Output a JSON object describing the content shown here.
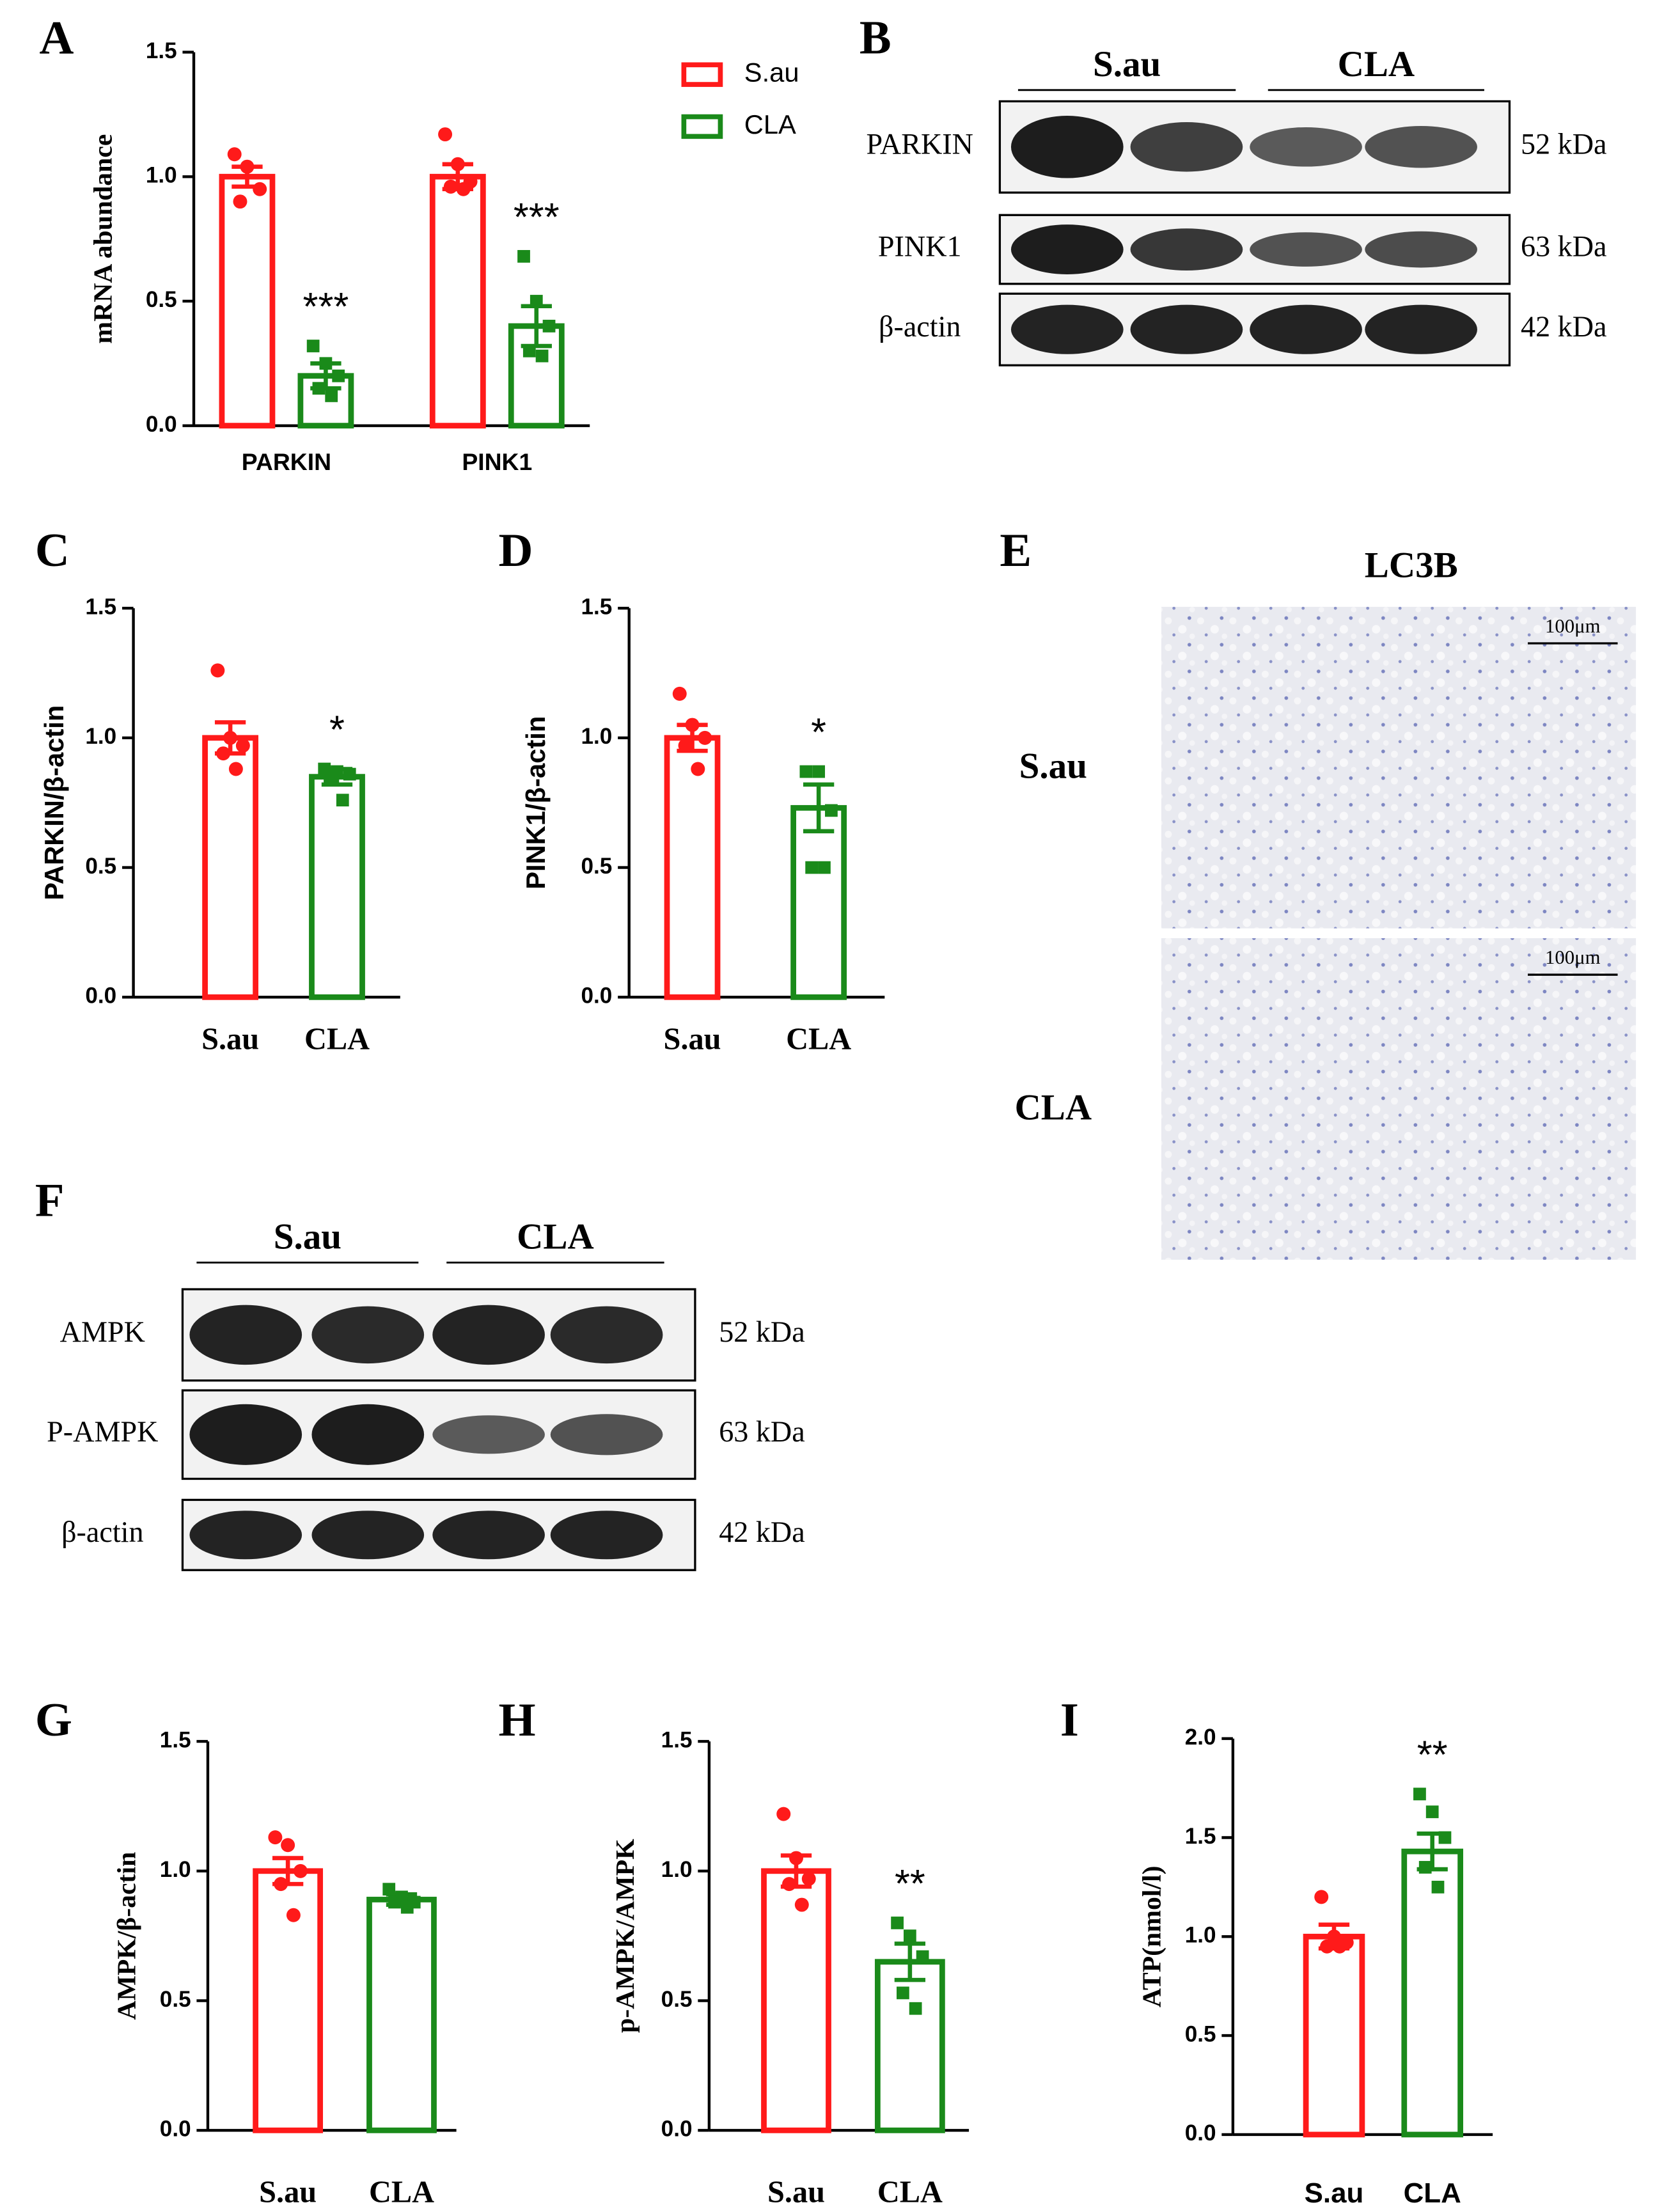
{
  "chart_data": [
    {
      "type": "bar",
      "panel": "A",
      "ylabel": "mRNA abundance",
      "categories": [
        "PARKIN",
        "PINK1"
      ],
      "series": [
        {
          "name": "S.au",
          "color": "#ff1a1a",
          "marker": "circle",
          "values": [
            1.0,
            1.0
          ],
          "errors": [
            0.04,
            0.05
          ],
          "points": [
            [
              1.09,
              1.04,
              0.95,
              0.9
            ],
            [
              1.17,
              1.05,
              0.98,
              0.96,
              0.95
            ]
          ],
          "annotations": [
            null,
            null
          ]
        },
        {
          "name": "CLA",
          "color": "#1a8a1a",
          "marker": "square",
          "values": [
            0.2,
            0.4
          ],
          "errors": [
            0.05,
            0.08
          ],
          "points": [
            [
              0.32,
              0.25,
              0.2,
              0.15,
              0.12
            ],
            [
              0.68,
              0.5,
              0.4,
              0.3,
              0.28
            ]
          ],
          "annotations": [
            "***",
            "***"
          ]
        }
      ],
      "ylim": [
        0,
        1.5
      ],
      "yticks": [
        {
          "value": 0,
          "label": "0.0"
        },
        0.5,
        {
          "value": 1,
          "label": "1.0"
        },
        1.5
      ],
      "legend": "top-right"
    },
    {
      "type": "bar",
      "panel": "C",
      "ylabel": "PARKIN/β-actin",
      "categories": [
        "S.au",
        "CLA"
      ],
      "colors": [
        "#ff1a1a",
        "#1a8a1a"
      ],
      "markers": [
        "circle",
        "square"
      ],
      "values": [
        1.0,
        0.85
      ],
      "errors": [
        0.06,
        0.03
      ],
      "points": [
        [
          1.26,
          1.0,
          0.97,
          0.94,
          0.88
        ],
        [
          0.88,
          0.87,
          0.86,
          0.85,
          0.76
        ]
      ],
      "annotations": [
        null,
        "*"
      ],
      "ylim": [
        0,
        1.5
      ],
      "yticks": [
        {
          "value": 0,
          "label": "0.0"
        },
        0.5,
        {
          "value": 1,
          "label": "1.0"
        },
        1.5
      ]
    },
    {
      "type": "bar",
      "panel": "D",
      "ylabel": "PINK1/β-actin",
      "categories": [
        "S.au",
        "CLA"
      ],
      "colors": [
        "#ff1a1a",
        "#1a8a1a"
      ],
      "markers": [
        "circle",
        "square"
      ],
      "values": [
        1.0,
        0.73
      ],
      "errors": [
        0.05,
        0.09
      ],
      "points": [
        [
          1.17,
          1.05,
          1.0,
          0.97,
          0.88
        ],
        [
          0.87,
          0.87,
          0.72,
          0.5,
          0.5
        ]
      ],
      "annotations": [
        null,
        "*"
      ],
      "ylim": [
        0,
        1.5
      ],
      "yticks": [
        {
          "value": 0,
          "label": "0.0"
        },
        0.5,
        {
          "value": 1,
          "label": "1.0"
        },
        1.5
      ]
    },
    {
      "type": "bar",
      "panel": "G",
      "ylabel": "AMPK/β-actin",
      "categories": [
        "S.au",
        "CLA"
      ],
      "colors": [
        "#ff1a1a",
        "#1a8a1a"
      ],
      "markers": [
        "circle",
        "square"
      ],
      "values": [
        1.0,
        0.89
      ],
      "errors": [
        0.05,
        0.02
      ],
      "points": [
        [
          1.13,
          1.1,
          1.0,
          0.95,
          0.83
        ],
        [
          0.93,
          0.9,
          0.88,
          0.88,
          0.86
        ]
      ],
      "annotations": [
        null,
        null
      ],
      "ylim": [
        0,
        1.5
      ],
      "yticks": [
        {
          "value": 0,
          "label": "0.0"
        },
        0.5,
        {
          "value": 1,
          "label": "1.0"
        },
        1.5
      ]
    },
    {
      "type": "bar",
      "panel": "H",
      "ylabel": "p-AMPK/AMPK",
      "categories": [
        "S.au",
        "CLA"
      ],
      "colors": [
        "#ff1a1a",
        "#1a8a1a"
      ],
      "markers": [
        "circle",
        "square"
      ],
      "values": [
        1.0,
        0.65
      ],
      "errors": [
        0.06,
        0.07
      ],
      "points": [
        [
          1.22,
          1.05,
          0.97,
          0.95,
          0.87
        ],
        [
          0.8,
          0.75,
          0.67,
          0.53,
          0.47
        ]
      ],
      "annotations": [
        null,
        "**"
      ],
      "ylim": [
        0,
        1.5
      ],
      "yticks": [
        {
          "value": 0,
          "label": "0.0"
        },
        0.5,
        {
          "value": 1,
          "label": "1.0"
        },
        1.5
      ]
    },
    {
      "type": "bar",
      "panel": "I",
      "ylabel": "ATP(nmol/l)",
      "categories": [
        "S.au",
        "CLA"
      ],
      "colors": [
        "#ff1a1a",
        "#1a8a1a"
      ],
      "markers": [
        "circle",
        "square"
      ],
      "values": [
        1.0,
        1.43
      ],
      "errors": [
        0.06,
        0.09
      ],
      "points": [
        [
          1.2,
          1.0,
          0.97,
          0.95,
          0.95
        ],
        [
          1.72,
          1.63,
          1.5,
          1.35,
          1.25
        ]
      ],
      "annotations": [
        null,
        "**"
      ],
      "ylim": [
        0,
        2
      ],
      "yticks": [
        {
          "value": 0,
          "label": "0.0"
        },
        0.5,
        {
          "value": 1,
          "label": "1.0"
        },
        1.5,
        {
          "value": 2,
          "label": "2.0"
        }
      ]
    }
  ],
  "blots": [
    {
      "panel": "B",
      "groups": [
        "S.au",
        "CLA"
      ],
      "rows": [
        {
          "label": "PARKIN",
          "size": "52 kDa"
        },
        {
          "label": "PINK1",
          "size": "63 kDa"
        },
        {
          "label": "β-actin",
          "size": "42 kDa"
        }
      ]
    },
    {
      "panel": "F",
      "groups": [
        "S.au",
        "CLA"
      ],
      "rows": [
        {
          "label": "AMPK",
          "size": "52 kDa"
        },
        {
          "label": "P-AMPK",
          "size": "63 kDa"
        },
        {
          "label": "β-actin",
          "size": "42 kDa"
        }
      ]
    }
  ],
  "histology": {
    "panel": "E",
    "title": "LC3B",
    "rows": [
      "S.au",
      "CLA"
    ],
    "scale_bar": "100μm"
  }
}
